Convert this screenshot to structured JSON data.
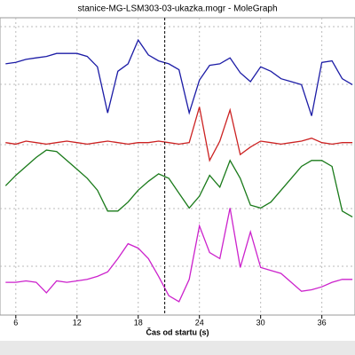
{
  "window_title": "stanice-MG-LSM303-03-ukazka.mogr - MoleGraph",
  "chart_data": {
    "type": "line",
    "xlabel": "Čas od startu (s)",
    "x": [
      5,
      6,
      7,
      8,
      9,
      10,
      11,
      12,
      13,
      14,
      15,
      16,
      17,
      18,
      19,
      20,
      21,
      22,
      23,
      24,
      25,
      26,
      27,
      28,
      29,
      30,
      31,
      32,
      33,
      34,
      35,
      36,
      37,
      38,
      39
    ],
    "xlim": [
      4.45,
      39.25
    ],
    "xticks": [
      6,
      12,
      18,
      24,
      30,
      36
    ],
    "ylim": [
      0,
      100
    ],
    "cursor_x": 20.6,
    "series": [
      {
        "color": "#1c1ca6",
        "values": [
          84.5,
          85,
          86,
          86.5,
          87,
          88,
          88,
          88,
          87,
          83.5,
          68,
          82,
          84.5,
          92.5,
          87.5,
          85.5,
          84.5,
          82.5,
          68,
          79,
          84,
          84.5,
          86.5,
          81.5,
          78.5,
          83.5,
          82,
          79.5,
          78.5,
          77.5,
          67,
          85,
          85.5,
          79.5,
          77.5
        ]
      },
      {
        "color": "#cc2222",
        "values": [
          58,
          57.5,
          58.5,
          58,
          57.5,
          58,
          58.5,
          58,
          57.5,
          58,
          58.5,
          58,
          57.5,
          58,
          58,
          58.5,
          58,
          57.5,
          58,
          70,
          52,
          58.5,
          69,
          54,
          56.5,
          58.5,
          58,
          57.5,
          58,
          58.5,
          59.5,
          58,
          57.5,
          58,
          58
        ]
      },
      {
        "color": "#1a7a1a",
        "values": [
          43.5,
          47,
          50,
          53,
          55.5,
          55,
          52,
          49,
          46,
          42,
          35,
          35,
          38,
          42,
          45,
          47.5,
          46,
          41,
          36,
          40,
          47,
          43,
          52,
          46,
          37,
          36,
          38,
          42,
          46,
          50,
          52,
          52,
          50,
          35,
          33
        ]
      },
      {
        "color": "#cc22cc",
        "values": [
          11,
          11,
          11.5,
          11,
          7.5,
          11.5,
          11,
          11.5,
          12,
          13,
          14.5,
          19,
          24,
          22.5,
          19,
          13,
          6.5,
          4.5,
          12,
          30,
          21,
          19,
          36,
          16,
          28,
          16,
          15,
          14,
          11,
          8,
          8.5,
          9.5,
          11,
          12,
          12
        ]
      }
    ]
  }
}
